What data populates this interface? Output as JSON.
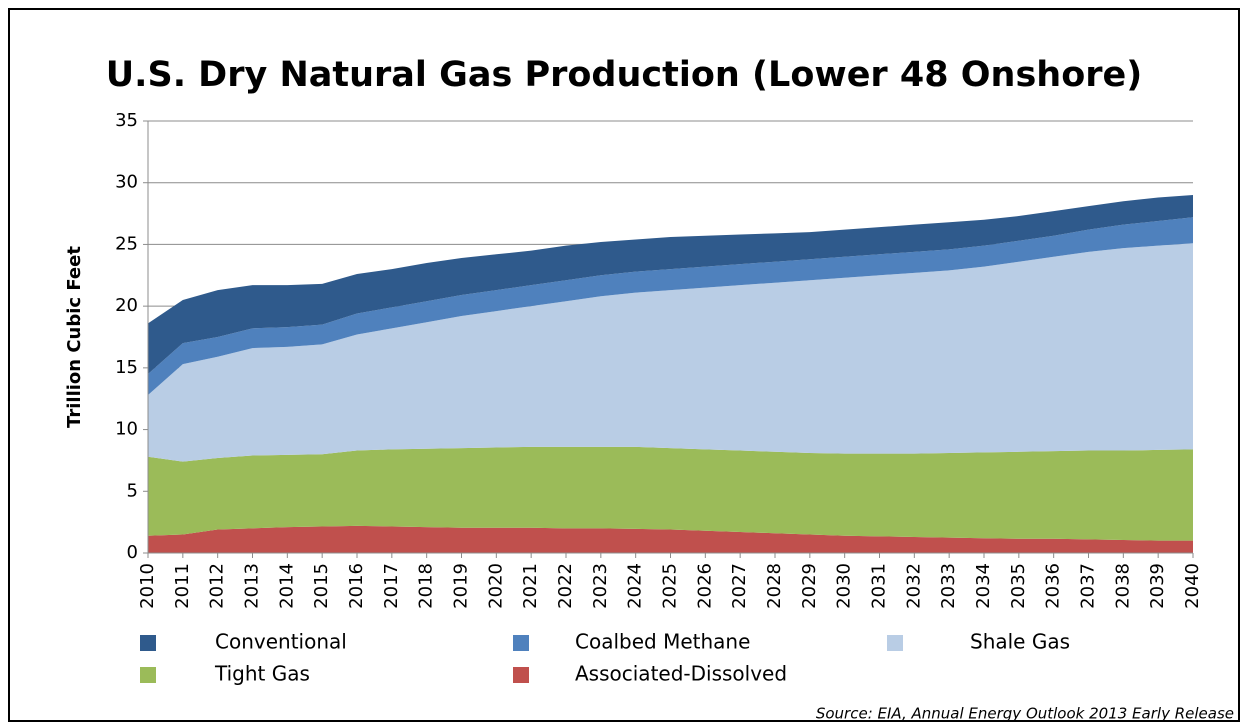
{
  "chart_data": {
    "type": "stacked_area",
    "title": "U.S. Dry Natural Gas Production (Lower 48 Onshore)",
    "ylabel": "Trillion Cubic Feet",
    "source": "Source: EIA, Annual Energy Outlook 2013 Early Release",
    "categories": [
      "2010",
      "2011",
      "2012",
      "2013",
      "2014",
      "2015",
      "2016",
      "2017",
      "2018",
      "2019",
      "2020",
      "2021",
      "2022",
      "2023",
      "2024",
      "2025",
      "2026",
      "2027",
      "2028",
      "2029",
      "2030",
      "2031",
      "2032",
      "2033",
      "2034",
      "2035",
      "2036",
      "2037",
      "2038",
      "2039",
      "2040"
    ],
    "ylim": [
      0,
      35
    ],
    "yticks": [
      0,
      5,
      10,
      15,
      20,
      25,
      30,
      35
    ],
    "grid": true,
    "legend": "bottom",
    "series": [
      {
        "name": "Conventional",
        "color": "#2f5a8c",
        "values": [
          4.1,
          3.5,
          3.8,
          3.5,
          3.4,
          3.3,
          3.2,
          3.1,
          3.1,
          3.0,
          2.9,
          2.8,
          2.8,
          2.7,
          2.6,
          2.6,
          2.5,
          2.4,
          2.3,
          2.2,
          2.2,
          2.2,
          2.2,
          2.2,
          2.1,
          2.0,
          2.0,
          1.9,
          1.9,
          1.9,
          1.8
        ]
      },
      {
        "name": "Coalbed Methane",
        "color": "#4f81bd",
        "values": [
          1.7,
          1.7,
          1.6,
          1.6,
          1.6,
          1.6,
          1.7,
          1.7,
          1.7,
          1.7,
          1.7,
          1.7,
          1.7,
          1.7,
          1.7,
          1.7,
          1.7,
          1.7,
          1.7,
          1.7,
          1.7,
          1.7,
          1.7,
          1.7,
          1.7,
          1.7,
          1.7,
          1.8,
          1.9,
          2.0,
          2.1
        ]
      },
      {
        "name": "Shale Gas",
        "color": "#b9cde5",
        "values": [
          5.0,
          7.9,
          8.2,
          8.7,
          8.75,
          8.9,
          9.4,
          9.8,
          10.25,
          10.7,
          11.05,
          11.4,
          11.8,
          12.2,
          12.5,
          12.8,
          13.1,
          13.4,
          13.7,
          14.0,
          14.25,
          14.45,
          14.65,
          14.8,
          15.05,
          15.4,
          15.75,
          16.1,
          16.4,
          16.55,
          16.7
        ]
      },
      {
        "name": "Tight Gas",
        "color": "#9bbb59",
        "values": [
          6.4,
          5.9,
          5.8,
          5.9,
          5.85,
          5.85,
          6.1,
          6.25,
          6.35,
          6.45,
          6.5,
          6.55,
          6.6,
          6.6,
          6.65,
          6.6,
          6.6,
          6.6,
          6.6,
          6.6,
          6.65,
          6.7,
          6.75,
          6.85,
          6.95,
          7.05,
          7.1,
          7.2,
          7.25,
          7.35,
          7.4
        ]
      },
      {
        "name": "Associated-Dissolved",
        "color": "#c0504d",
        "values": [
          1.4,
          1.5,
          1.9,
          2.0,
          2.1,
          2.15,
          2.2,
          2.15,
          2.1,
          2.05,
          2.05,
          2.05,
          2.0,
          2.0,
          1.95,
          1.9,
          1.8,
          1.7,
          1.6,
          1.5,
          1.4,
          1.35,
          1.3,
          1.25,
          1.2,
          1.15,
          1.15,
          1.1,
          1.05,
          1.0,
          1.0
        ]
      }
    ]
  }
}
